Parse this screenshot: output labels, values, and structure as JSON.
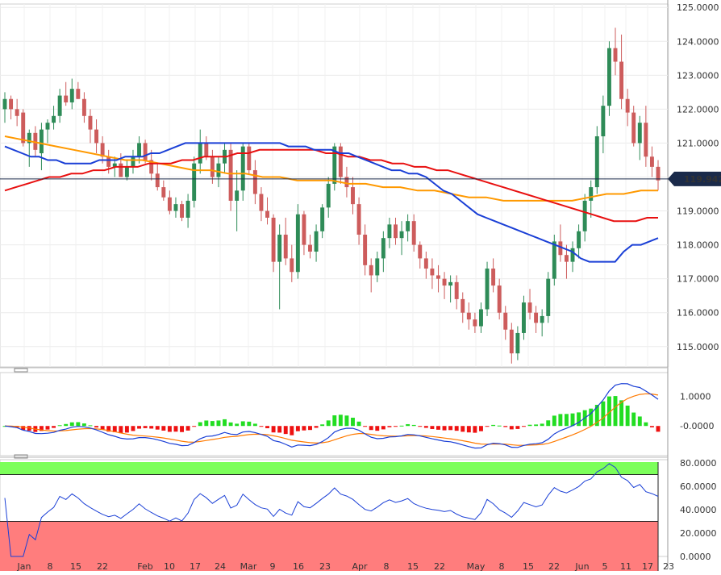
{
  "chart_data": [
    {
      "type": "candlestick",
      "ylim": [
        114.4,
        125.1
      ],
      "yticks": [
        "125.0000",
        "124.0000",
        "123.0000",
        "122.0000",
        "121.0000",
        "120.0000",
        "119.0000",
        "118.0000",
        "117.0000",
        "116.0000",
        "115.0000"
      ],
      "xticks": [
        "Jan",
        "8",
        "15",
        "22",
        "Feb",
        "10",
        "17",
        "24",
        "Mar",
        "9",
        "16",
        "23",
        "Apr",
        "8",
        "15",
        "22",
        "May",
        "8",
        "15",
        "22",
        "Jun",
        "5",
        "11",
        "17",
        "23"
      ],
      "last_price": "119.9420",
      "colors": {
        "up": "#2e8b57",
        "down": "#cd5c5c",
        "sma_short": "#1a3fd6",
        "sma_mid": "#e81010",
        "sma_long": "#ff9900",
        "last_line": "#1a2a4a"
      },
      "candles": [
        [
          122.0,
          122.5,
          121.6,
          122.3
        ],
        [
          122.3,
          122.4,
          121.7,
          122.0
        ],
        [
          122.0,
          122.3,
          121.5,
          121.8
        ],
        [
          121.9,
          122.0,
          120.9,
          121.0
        ],
        [
          121.0,
          121.4,
          120.3,
          121.3
        ],
        [
          121.3,
          121.5,
          120.6,
          120.8
        ],
        [
          120.7,
          121.6,
          120.2,
          121.4
        ],
        [
          121.4,
          121.7,
          121.0,
          121.6
        ],
        [
          121.6,
          122.1,
          121.4,
          121.8
        ],
        [
          121.8,
          122.6,
          121.6,
          122.4
        ],
        [
          122.4,
          122.8,
          122.1,
          122.2
        ],
        [
          122.2,
          122.9,
          122.0,
          122.6
        ],
        [
          122.6,
          122.8,
          122.3,
          122.3
        ],
        [
          122.3,
          122.5,
          121.6,
          121.8
        ],
        [
          121.8,
          122.0,
          121.0,
          121.4
        ],
        [
          121.4,
          121.7,
          120.7,
          121.0
        ],
        [
          121.0,
          121.2,
          120.4,
          120.6
        ],
        [
          120.6,
          120.8,
          120.1,
          120.3
        ],
        [
          120.3,
          120.6,
          120.0,
          120.4
        ],
        [
          120.4,
          120.7,
          120.0,
          120.0
        ],
        [
          120.0,
          120.5,
          119.9,
          120.3
        ],
        [
          120.3,
          120.8,
          120.1,
          120.6
        ],
        [
          120.6,
          121.2,
          120.4,
          121.0
        ],
        [
          121.0,
          121.1,
          120.4,
          120.5
        ],
        [
          120.5,
          120.8,
          119.9,
          120.1
        ],
        [
          120.1,
          120.4,
          119.6,
          119.7
        ],
        [
          119.7,
          119.9,
          119.3,
          119.4
        ],
        [
          119.4,
          119.6,
          118.9,
          119.0
        ],
        [
          119.0,
          119.4,
          118.8,
          119.2
        ],
        [
          119.2,
          119.3,
          118.7,
          118.8
        ],
        [
          118.8,
          119.5,
          118.5,
          119.3
        ],
        [
          119.3,
          120.6,
          119.1,
          120.4
        ],
        [
          120.4,
          121.4,
          120.1,
          121.0
        ],
        [
          121.0,
          121.2,
          120.5,
          120.6
        ],
        [
          120.6,
          120.8,
          119.8,
          120.0
        ],
        [
          120.0,
          120.6,
          119.7,
          120.4
        ],
        [
          120.4,
          121.0,
          120.1,
          120.8
        ],
        [
          120.8,
          121.0,
          119.0,
          119.3
        ],
        [
          119.3,
          120.2,
          118.4,
          119.6
        ],
        [
          119.6,
          121.0,
          119.3,
          120.9
        ],
        [
          120.9,
          121.0,
          120.1,
          120.2
        ],
        [
          120.2,
          120.5,
          119.2,
          119.5
        ],
        [
          119.5,
          119.7,
          118.7,
          119.0
        ],
        [
          119.0,
          119.4,
          118.6,
          118.8
        ],
        [
          118.8,
          118.9,
          117.2,
          117.5
        ],
        [
          117.5,
          118.6,
          116.1,
          118.3
        ],
        [
          118.3,
          118.8,
          117.4,
          117.6
        ],
        [
          117.6,
          118.0,
          116.9,
          117.2
        ],
        [
          117.2,
          119.2,
          117.0,
          118.9
        ],
        [
          118.9,
          119.0,
          117.7,
          118.0
        ],
        [
          118.0,
          118.3,
          117.6,
          117.8
        ],
        [
          117.8,
          118.6,
          117.5,
          118.4
        ],
        [
          118.4,
          119.2,
          118.2,
          119.1
        ],
        [
          119.1,
          120.0,
          118.8,
          119.8
        ],
        [
          119.8,
          121.0,
          119.6,
          120.9
        ],
        [
          120.9,
          121.0,
          119.8,
          120.0
        ],
        [
          120.0,
          120.3,
          119.4,
          119.7
        ],
        [
          119.7,
          120.0,
          118.9,
          119.2
        ],
        [
          119.2,
          119.4,
          118.0,
          118.3
        ],
        [
          118.3,
          118.6,
          117.1,
          117.4
        ],
        [
          117.4,
          117.6,
          116.6,
          117.1
        ],
        [
          117.1,
          117.8,
          116.9,
          117.6
        ],
        [
          117.6,
          118.4,
          117.2,
          118.2
        ],
        [
          118.2,
          118.8,
          117.9,
          118.6
        ],
        [
          118.6,
          118.8,
          118.0,
          118.2
        ],
        [
          118.2,
          118.7,
          117.7,
          118.4
        ],
        [
          118.4,
          118.9,
          118.1,
          118.7
        ],
        [
          118.7,
          118.9,
          117.8,
          118.0
        ],
        [
          118.0,
          118.1,
          117.3,
          117.6
        ],
        [
          117.6,
          117.8,
          117.0,
          117.3
        ],
        [
          117.3,
          117.6,
          116.7,
          117.1
        ],
        [
          117.1,
          117.4,
          116.6,
          117.0
        ],
        [
          117.0,
          117.2,
          116.4,
          116.8
        ],
        [
          116.8,
          117.1,
          116.3,
          116.9
        ],
        [
          116.9,
          117.1,
          116.1,
          116.4
        ],
        [
          116.4,
          116.6,
          115.7,
          116.0
        ],
        [
          116.0,
          116.3,
          115.5,
          115.8
        ],
        [
          115.8,
          116.0,
          115.4,
          115.6
        ],
        [
          115.6,
          116.3,
          115.4,
          116.1
        ],
        [
          116.1,
          117.5,
          115.9,
          117.3
        ],
        [
          117.3,
          117.6,
          116.6,
          116.8
        ],
        [
          116.8,
          117.0,
          115.8,
          116.0
        ],
        [
          116.0,
          116.2,
          115.2,
          115.5
        ],
        [
          115.5,
          115.7,
          114.5,
          114.8
        ],
        [
          114.8,
          115.6,
          114.6,
          115.4
        ],
        [
          115.4,
          116.5,
          115.2,
          116.3
        ],
        [
          116.3,
          116.7,
          115.8,
          116.0
        ],
        [
          116.0,
          116.2,
          115.4,
          115.7
        ],
        [
          115.7,
          116.1,
          115.3,
          115.9
        ],
        [
          115.9,
          117.2,
          115.7,
          117.0
        ],
        [
          117.0,
          118.3,
          116.8,
          118.1
        ],
        [
          118.1,
          118.6,
          117.5,
          117.7
        ],
        [
          117.7,
          118.0,
          117.0,
          117.5
        ],
        [
          117.5,
          118.1,
          117.2,
          117.9
        ],
        [
          117.9,
          118.6,
          117.6,
          118.4
        ],
        [
          118.4,
          119.5,
          118.1,
          119.3
        ],
        [
          119.3,
          119.9,
          118.8,
          119.7
        ],
        [
          119.7,
          121.5,
          119.5,
          121.2
        ],
        [
          121.2,
          122.4,
          120.7,
          122.1
        ],
        [
          122.1,
          124.0,
          121.8,
          123.8
        ],
        [
          123.8,
          124.4,
          123.0,
          123.4
        ],
        [
          123.4,
          124.2,
          122.0,
          122.3
        ],
        [
          122.3,
          122.6,
          121.5,
          121.9
        ],
        [
          121.9,
          122.1,
          120.9,
          121.0
        ],
        [
          121.0,
          121.8,
          120.5,
          121.6
        ],
        [
          121.6,
          122.1,
          120.3,
          120.6
        ],
        [
          120.6,
          120.9,
          120.0,
          120.3
        ],
        [
          120.3,
          120.5,
          119.6,
          119.9
        ]
      ],
      "sma_short": [
        120.9,
        120.8,
        120.7,
        120.6,
        120.6,
        120.5,
        120.5,
        120.4,
        120.4,
        120.4,
        120.4,
        120.5,
        120.5,
        120.5,
        120.6,
        120.6,
        120.6,
        120.7,
        120.7,
        120.8,
        120.9,
        121.0,
        121.0,
        121.0,
        121.0,
        121.0,
        121.0,
        121.0,
        121.0,
        121.0,
        121.0,
        121.0,
        121.0,
        120.9,
        120.9,
        120.9,
        120.8,
        120.8,
        120.8,
        120.7,
        120.7,
        120.6,
        120.5,
        120.4,
        120.3,
        120.2,
        120.2,
        120.1,
        120.1,
        120.0,
        119.8,
        119.6,
        119.5,
        119.3,
        119.1,
        118.9,
        118.8,
        118.7,
        118.6,
        118.5,
        118.4,
        118.3,
        118.2,
        118.1,
        118.0,
        117.9,
        117.8,
        117.6,
        117.5,
        117.5,
        117.5,
        117.5,
        117.8,
        118.0,
        118.0,
        118.1,
        118.2
      ],
      "sma_mid": [
        119.6,
        119.7,
        119.8,
        119.9,
        120.0,
        120.0,
        120.1,
        120.1,
        120.2,
        120.2,
        120.3,
        120.3,
        120.3,
        120.4,
        120.4,
        120.4,
        120.5,
        120.5,
        120.6,
        120.6,
        120.6,
        120.7,
        120.7,
        120.8,
        120.8,
        120.8,
        120.8,
        120.8,
        120.8,
        120.7,
        120.7,
        120.6,
        120.6,
        120.5,
        120.5,
        120.4,
        120.4,
        120.3,
        120.3,
        120.2,
        120.2,
        120.1,
        120.0,
        119.9,
        119.8,
        119.7,
        119.6,
        119.5,
        119.4,
        119.3,
        119.2,
        119.1,
        119.0,
        118.9,
        118.8,
        118.7,
        118.7,
        118.7,
        118.8,
        118.8
      ],
      "sma_long": [
        121.2,
        121.1,
        121.0,
        120.9,
        120.8,
        120.7,
        120.6,
        120.5,
        120.5,
        120.4,
        120.3,
        120.2,
        120.2,
        120.1,
        120.1,
        120.0,
        120.0,
        119.9,
        119.9,
        119.9,
        119.8,
        119.8,
        119.7,
        119.7,
        119.6,
        119.6,
        119.5,
        119.4,
        119.4,
        119.3,
        119.3,
        119.3,
        119.3,
        119.3,
        119.4,
        119.5,
        119.5,
        119.6,
        119.6
      ]
    },
    {
      "type": "macd",
      "yticks": [
        "1.0000",
        "-0.0000"
      ],
      "ylim": [
        -1.0,
        1.8
      ],
      "colors": {
        "macd_line": "#1a3fd6",
        "signal_line": "#ff7a00",
        "hist_pos": "#22dd22",
        "hist_neg": "#ee1111"
      }
    },
    {
      "type": "rsi",
      "yticks": [
        "80.0000",
        "60.0000",
        "40.0000",
        "20.0000",
        "0.0000"
      ],
      "ylim": [
        0,
        100
      ],
      "overbought": 70,
      "oversold": 30,
      "colors": {
        "line": "#1a3fd6",
        "overbought_fill": "#7cff5a",
        "oversold_fill": "#ff7d7d"
      }
    }
  ]
}
